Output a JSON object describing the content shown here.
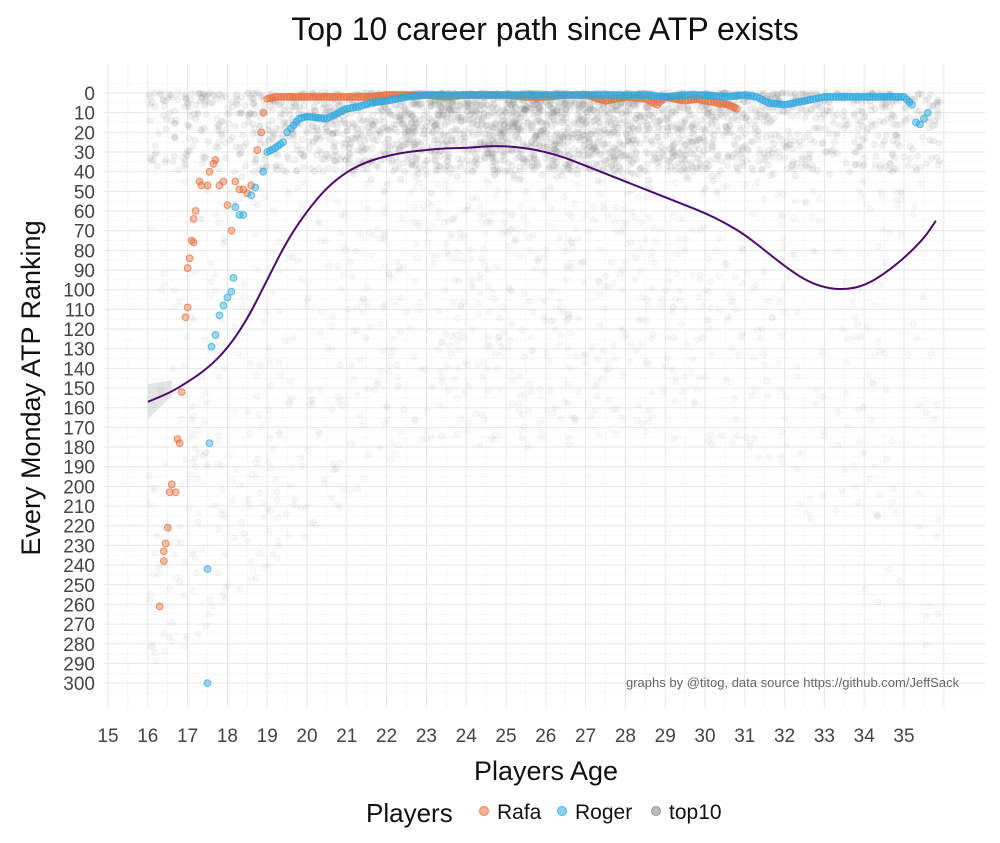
{
  "chart_data": {
    "type": "scatter",
    "title": "Top 10 career path since ATP exists",
    "xlabel": "Players Age",
    "ylabel": "Every Monday ATP Ranking",
    "xlim": [
      15,
      36
    ],
    "ylim": [
      0,
      300
    ],
    "y_reversed": true,
    "grid": true,
    "xticks": [
      "15",
      "16",
      "17",
      "18",
      "19",
      "20",
      "21",
      "22",
      "23",
      "24",
      "25",
      "26",
      "27",
      "28",
      "29",
      "30",
      "31",
      "32",
      "33",
      "34",
      "35"
    ],
    "yticks": [
      "0",
      "10",
      "20",
      "30",
      "40",
      "50",
      "60",
      "70",
      "80",
      "90",
      "100",
      "110",
      "120",
      "130",
      "140",
      "150",
      "160",
      "170",
      "180",
      "190",
      "200",
      "210",
      "220",
      "230",
      "240",
      "250",
      "260",
      "270",
      "280",
      "290",
      "300"
    ],
    "legend": {
      "title": "Players",
      "position": "bottom",
      "entries": [
        "Rafa",
        "Roger",
        "top10"
      ]
    },
    "caption": "graphs by @titog, data source https://github.com/JeffSack",
    "series": [
      {
        "name": "Rafa",
        "color": "#e8703d",
        "points": [
          [
            16.3,
            261
          ],
          [
            16.4,
            238
          ],
          [
            16.4,
            233
          ],
          [
            16.45,
            229
          ],
          [
            16.5,
            221
          ],
          [
            16.55,
            203
          ],
          [
            16.6,
            199
          ],
          [
            16.7,
            203
          ],
          [
            16.75,
            176
          ],
          [
            16.8,
            178
          ],
          [
            16.85,
            152
          ],
          [
            16.95,
            114
          ],
          [
            17.0,
            109
          ],
          [
            17.0,
            89
          ],
          [
            17.05,
            84
          ],
          [
            17.1,
            75
          ],
          [
            17.15,
            76
          ],
          [
            17.15,
            64
          ],
          [
            17.2,
            60
          ],
          [
            17.3,
            45
          ],
          [
            17.35,
            47
          ],
          [
            17.5,
            47
          ],
          [
            17.55,
            40
          ],
          [
            17.65,
            36
          ],
          [
            17.7,
            34
          ],
          [
            17.8,
            47
          ],
          [
            17.9,
            45
          ],
          [
            18.0,
            57
          ],
          [
            18.1,
            70
          ],
          [
            18.2,
            45
          ],
          [
            18.3,
            49
          ],
          [
            18.4,
            49
          ],
          [
            18.5,
            51
          ],
          [
            18.6,
            47
          ],
          [
            18.75,
            29
          ],
          [
            18.85,
            20
          ],
          [
            18.9,
            10
          ],
          [
            19.0,
            3
          ],
          [
            19.2,
            2
          ],
          [
            19.5,
            2
          ],
          [
            20,
            2
          ],
          [
            20.5,
            2
          ],
          [
            21,
            2
          ],
          [
            21.5,
            2
          ],
          [
            22,
            1
          ],
          [
            22.5,
            1
          ],
          [
            23,
            1
          ],
          [
            23.5,
            2
          ],
          [
            24,
            1
          ],
          [
            24.5,
            1
          ],
          [
            25,
            1
          ],
          [
            25.5,
            2
          ],
          [
            26,
            2
          ],
          [
            26.5,
            1
          ],
          [
            27,
            1
          ],
          [
            27.5,
            4
          ],
          [
            28,
            2
          ],
          [
            28.5,
            3
          ],
          [
            28.8,
            6
          ],
          [
            29,
            2
          ],
          [
            29.5,
            4
          ],
          [
            29.8,
            3
          ],
          [
            30,
            4
          ],
          [
            30.3,
            5
          ],
          [
            30.6,
            6
          ],
          [
            30.8,
            8
          ]
        ]
      },
      {
        "name": "Roger",
        "color": "#2ea9e0",
        "points": [
          [
            17.5,
            300
          ],
          [
            17.5,
            242
          ],
          [
            17.55,
            178
          ],
          [
            17.6,
            129
          ],
          [
            17.7,
            123
          ],
          [
            17.8,
            113
          ],
          [
            17.9,
            108
          ],
          [
            18.0,
            104
          ],
          [
            18.1,
            101
          ],
          [
            18.15,
            94
          ],
          [
            18.2,
            58
          ],
          [
            18.3,
            62
          ],
          [
            18.4,
            62
          ],
          [
            18.6,
            52
          ],
          [
            18.7,
            48
          ],
          [
            18.9,
            40
          ],
          [
            19.0,
            30
          ],
          [
            19.2,
            28
          ],
          [
            19.4,
            25
          ],
          [
            19.5,
            20
          ],
          [
            19.6,
            18
          ],
          [
            19.8,
            13
          ],
          [
            20,
            12
          ],
          [
            20.5,
            13
          ],
          [
            20.8,
            10
          ],
          [
            21,
            8
          ],
          [
            21.3,
            7
          ],
          [
            21.6,
            5
          ],
          [
            22,
            4
          ],
          [
            22.5,
            2
          ],
          [
            23,
            1
          ],
          [
            23.5,
            1
          ],
          [
            24,
            1
          ],
          [
            24.5,
            1
          ],
          [
            25,
            1
          ],
          [
            25.5,
            1
          ],
          [
            26,
            1
          ],
          [
            26.5,
            1
          ],
          [
            27,
            1
          ],
          [
            27.5,
            1
          ],
          [
            28,
            1
          ],
          [
            28.5,
            1
          ],
          [
            29,
            2
          ],
          [
            29.5,
            1
          ],
          [
            30,
            1
          ],
          [
            30.5,
            2
          ],
          [
            31,
            1
          ],
          [
            31.3,
            2
          ],
          [
            31.6,
            5
          ],
          [
            32,
            6
          ],
          [
            32.5,
            4
          ],
          [
            33,
            2
          ],
          [
            33.5,
            2
          ],
          [
            34,
            2
          ],
          [
            34.5,
            2
          ],
          [
            35,
            2
          ],
          [
            35.2,
            6
          ],
          [
            35.3,
            15
          ],
          [
            35.4,
            16
          ],
          [
            35.5,
            13
          ],
          [
            35.6,
            10
          ]
        ]
      },
      {
        "name": "top10",
        "color": "#808080",
        "smooth_color": "#4b0a6e",
        "smooth": [
          [
            16.0,
            157
          ],
          [
            16.5,
            153
          ],
          [
            17.0,
            147
          ],
          [
            17.5,
            140
          ],
          [
            18.0,
            130
          ],
          [
            18.5,
            115
          ],
          [
            19.0,
            95
          ],
          [
            19.5,
            75
          ],
          [
            20.0,
            60
          ],
          [
            20.5,
            48
          ],
          [
            21.0,
            40
          ],
          [
            21.5,
            35
          ],
          [
            22.0,
            32
          ],
          [
            22.5,
            30
          ],
          [
            23.0,
            29
          ],
          [
            23.5,
            28
          ],
          [
            24.0,
            28
          ],
          [
            24.5,
            27
          ],
          [
            25.0,
            27
          ],
          [
            25.5,
            28
          ],
          [
            26.0,
            30
          ],
          [
            26.5,
            33
          ],
          [
            27.0,
            37
          ],
          [
            27.5,
            41
          ],
          [
            28.0,
            45
          ],
          [
            28.5,
            49
          ],
          [
            29.0,
            53
          ],
          [
            29.5,
            57
          ],
          [
            30.0,
            61
          ],
          [
            30.5,
            66
          ],
          [
            31.0,
            72
          ],
          [
            31.5,
            80
          ],
          [
            32.0,
            88
          ],
          [
            32.5,
            95
          ],
          [
            33.0,
            99
          ],
          [
            33.5,
            100
          ],
          [
            34.0,
            98
          ],
          [
            34.5,
            92
          ],
          [
            35.0,
            84
          ],
          [
            35.5,
            74
          ],
          [
            35.8,
            65
          ]
        ]
      }
    ]
  }
}
